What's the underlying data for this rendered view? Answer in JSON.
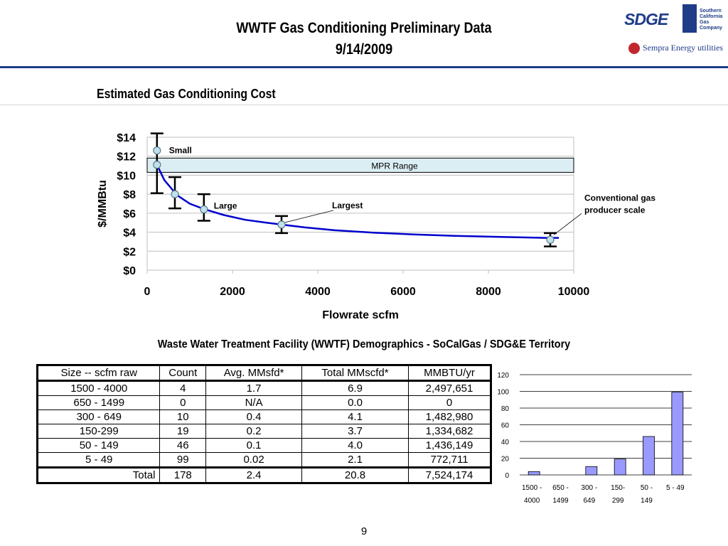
{
  "header": {
    "title_line1": "WWTF Gas Conditioning Preliminary Data",
    "title_line2": "9/14/2009",
    "logos": {
      "sdge": "SDGE",
      "socalgas": "Southern California Gas Company",
      "sempra": "Sempra Energy utilities"
    }
  },
  "section1": {
    "title": "Estimated Gas Conditioning Cost"
  },
  "chart_data": [
    {
      "type": "line",
      "title": "",
      "xlabel": "Flowrate scfm",
      "ylabel": "$/MMBtu",
      "xlim": [
        0,
        10000
      ],
      "ylim": [
        0,
        14
      ],
      "x_ticks": [
        0,
        2000,
        4000,
        6000,
        8000,
        10000
      ],
      "x_tick_labels": [
        "0",
        "2000",
        "4000",
        "6000",
        "8000",
        "10000"
      ],
      "y_ticks": [
        0,
        2,
        4,
        6,
        8,
        10,
        12,
        14
      ],
      "y_tick_labels": [
        "$0",
        "$2",
        "$4",
        "$6",
        "$8",
        "$10",
        "$12",
        "$14"
      ],
      "grid": "horizontal",
      "band": {
        "label": "MPR Range",
        "y_from": 10.3,
        "y_to": 11.8
      },
      "series": [
        {
          "x": [
            230,
            400,
            700,
            1000,
            1350,
            1800,
            2300,
            2800,
            3150,
            3700,
            4400,
            5300,
            6300,
            7300,
            8300,
            9300,
            9650
          ],
          "y": [
            11.1,
            9.5,
            7.9,
            7.0,
            6.4,
            5.8,
            5.3,
            5.0,
            4.8,
            4.5,
            4.2,
            3.95,
            3.75,
            3.6,
            3.5,
            3.4,
            3.4
          ]
        }
      ],
      "points": [
        {
          "x": 230,
          "y": 12.6,
          "err_low": 8.1,
          "err_high": 14.4,
          "label": "Small"
        },
        {
          "x": 230,
          "y": 11.1
        },
        {
          "x": 650,
          "y": 8.0,
          "err_low": 6.5,
          "err_high": 9.8
        },
        {
          "x": 1330,
          "y": 6.4,
          "err_low": 5.2,
          "err_high": 8.0,
          "label": "Large"
        },
        {
          "x": 3150,
          "y": 4.8,
          "err_low": 3.9,
          "err_high": 5.7,
          "label": "Largest"
        },
        {
          "x": 9450,
          "y": 3.2,
          "err_low": 2.5,
          "err_high": 3.9,
          "label": "Conventional gas producer scale"
        }
      ]
    },
    {
      "type": "bar",
      "categories": [
        "1500 - 4000",
        "650 - 1499",
        "300 - 649",
        "150-299",
        "50 - 149",
        "5 - 49"
      ],
      "category_lines": [
        [
          "1500 -",
          "4000"
        ],
        [
          "650 -",
          "1499"
        ],
        [
          "300 -",
          "649"
        ],
        [
          "150-",
          "299"
        ],
        [
          "50 -",
          "149"
        ],
        [
          "5 - 49",
          ""
        ]
      ],
      "values": [
        4,
        0,
        10,
        19,
        46,
        99
      ],
      "ylim": [
        0,
        120
      ],
      "y_ticks": [
        0,
        20,
        40,
        60,
        80,
        100,
        120
      ],
      "grid": "horizontal",
      "bar_color": "#9999ff"
    }
  ],
  "section2": {
    "title": "Waste Water Treatment Facility (WWTF) Demographics - SoCalGas / SDG&E Territory"
  },
  "table": {
    "headers": [
      "Size -- scfm raw",
      "Count",
      "Avg. MMsfd*",
      "Total MMscfd*",
      "MMBTU/yr"
    ],
    "rows": [
      [
        "1500 - 4000",
        "4",
        "1.7",
        "6.9",
        "2,497,651"
      ],
      [
        "650 - 1499",
        "0",
        "N/A",
        "0.0",
        "0"
      ],
      [
        "300 - 649",
        "10",
        "0.4",
        "4.1",
        "1,482,980"
      ],
      [
        "150-299",
        "19",
        "0.2",
        "3.7",
        "1,334,682"
      ],
      [
        "50 - 149",
        "46",
        "0.1",
        "4.0",
        "1,436,149"
      ],
      [
        "5 - 49",
        "99",
        "0.02",
        "2.1",
        "772,711"
      ]
    ],
    "total": [
      "Total",
      "178",
      "2.4",
      "20.8",
      "7,524,174"
    ]
  },
  "footer": {
    "page_number": "9"
  }
}
